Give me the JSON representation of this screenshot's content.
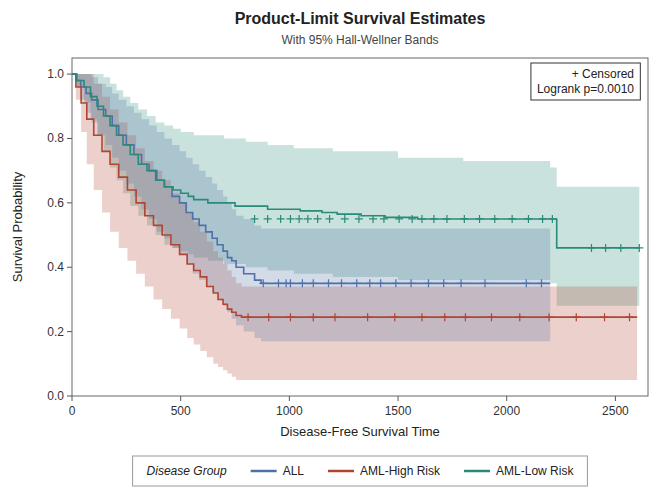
{
  "chart_data": {
    "type": "step",
    "title": "Product-Limit Survival Estimates",
    "subtitle": "With 95% Hall-Wellner Bands",
    "xlabel": "Disease-Free Survival Time",
    "ylabel": "Survival Probability",
    "annotation": "+ Censored\nLogrank p=0.0010",
    "legend_title": "Disease Group",
    "legend": "bottom",
    "grid": false,
    "xlim": [
      0,
      2650
    ],
    "ylim": [
      0.0,
      1.05
    ],
    "xticks": [
      0,
      500,
      1000,
      1500,
      2000,
      2500
    ],
    "yticks": [
      {
        "value": 0.0,
        "label": "0.0"
      },
      0.2,
      0.4,
      0.6,
      0.8,
      {
        "value": 1.0,
        "label": "1.0"
      }
    ],
    "series": [
      {
        "name": "ALL",
        "color": "#5070a8",
        "x": [
          0,
          20,
          40,
          65,
          90,
          120,
          155,
          185,
          215,
          250,
          285,
          320,
          355,
          390,
          425,
          460,
          495,
          525,
          555,
          585,
          615,
          645,
          668,
          695,
          715,
          735,
          755,
          790,
          840,
          870,
          2200
        ],
        "values": [
          1.0,
          0.98,
          0.96,
          0.94,
          0.92,
          0.89,
          0.87,
          0.84,
          0.81,
          0.78,
          0.75,
          0.72,
          0.7,
          0.67,
          0.65,
          0.62,
          0.6,
          0.57,
          0.55,
          0.53,
          0.51,
          0.49,
          0.47,
          0.45,
          0.43,
          0.42,
          0.4,
          0.38,
          0.36,
          0.35,
          0.35
        ],
        "upper": {
          "x": [
            0,
            20,
            40,
            65,
            90,
            120,
            155,
            185,
            215,
            250,
            285,
            320,
            355,
            390,
            425,
            460,
            495,
            525,
            555,
            585,
            615,
            645,
            668,
            695,
            715,
            735,
            755,
            790,
            840,
            870,
            2200
          ],
          "values": [
            1.0,
            1.0,
            1.0,
            1.0,
            0.99,
            0.97,
            0.96,
            0.94,
            0.92,
            0.9,
            0.88,
            0.86,
            0.84,
            0.82,
            0.8,
            0.78,
            0.76,
            0.74,
            0.72,
            0.7,
            0.68,
            0.66,
            0.64,
            0.62,
            0.6,
            0.58,
            0.56,
            0.55,
            0.53,
            0.52,
            0.52
          ]
        },
        "lower": {
          "x": [
            0,
            20,
            40,
            65,
            90,
            120,
            155,
            185,
            215,
            250,
            285,
            320,
            355,
            390,
            425,
            460,
            495,
            525,
            555,
            585,
            615,
            645,
            668,
            695,
            715,
            735,
            755,
            790,
            840,
            870,
            2200
          ],
          "values": [
            1.0,
            0.96,
            0.92,
            0.88,
            0.85,
            0.81,
            0.78,
            0.74,
            0.7,
            0.66,
            0.62,
            0.58,
            0.55,
            0.51,
            0.49,
            0.46,
            0.44,
            0.41,
            0.38,
            0.36,
            0.34,
            0.32,
            0.3,
            0.28,
            0.26,
            0.24,
            0.22,
            0.2,
            0.18,
            0.17,
            0.17
          ]
        },
        "censors": [
          {
            "x": [
              880,
              950,
              985,
              1005,
              1060,
              1110,
              1180,
              1240,
              1310,
              1370,
              1420,
              1490,
              1560,
              1640,
              1710,
              1790,
              1900,
              2090,
              2160
            ],
            "y": 0.35
          }
        ]
      },
      {
        "name": "AML-High Risk",
        "color": "#b04535",
        "x": [
          0,
          18,
          42,
          68,
          100,
          138,
          175,
          215,
          255,
          295,
          335,
          375,
          415,
          455,
          495,
          530,
          560,
          590,
          620,
          650,
          672,
          695,
          715,
          735,
          755,
          780,
          2600
        ],
        "values": [
          1.0,
          0.96,
          0.91,
          0.86,
          0.81,
          0.76,
          0.72,
          0.68,
          0.64,
          0.6,
          0.56,
          0.53,
          0.5,
          0.47,
          0.44,
          0.41,
          0.39,
          0.37,
          0.34,
          0.32,
          0.3,
          0.285,
          0.27,
          0.26,
          0.25,
          0.245,
          0.245
        ],
        "upper": {
          "x": [
            0,
            18,
            42,
            68,
            100,
            138,
            175,
            215,
            255,
            295,
            335,
            375,
            415,
            455,
            495,
            530,
            560,
            590,
            620,
            650,
            672,
            695,
            715,
            735,
            755,
            780,
            2600
          ],
          "values": [
            1.0,
            1.0,
            1.0,
            1.0,
            0.97,
            0.93,
            0.89,
            0.85,
            0.81,
            0.77,
            0.73,
            0.7,
            0.67,
            0.63,
            0.6,
            0.57,
            0.54,
            0.51,
            0.48,
            0.45,
            0.43,
            0.41,
            0.39,
            0.37,
            0.35,
            0.34,
            0.34
          ]
        },
        "lower": {
          "x": [
            0,
            18,
            42,
            68,
            100,
            138,
            175,
            215,
            255,
            295,
            335,
            375,
            415,
            455,
            495,
            530,
            560,
            590,
            620,
            650,
            672,
            695,
            715,
            735,
            755,
            780,
            2600
          ],
          "values": [
            1.0,
            0.92,
            0.82,
            0.72,
            0.64,
            0.57,
            0.51,
            0.46,
            0.42,
            0.38,
            0.34,
            0.3,
            0.27,
            0.24,
            0.21,
            0.18,
            0.16,
            0.14,
            0.12,
            0.1,
            0.09,
            0.08,
            0.07,
            0.06,
            0.05,
            0.05,
            0.05
          ]
        },
        "censors": [
          {
            "x": [
              810,
              905,
              1005,
              1110,
              1210,
              1360,
              1485,
              1610,
              1715,
              1810,
              1930,
              2060,
              2195,
              2320,
              2450,
              2565
            ],
            "y": 0.245
          }
        ]
      },
      {
        "name": "AML-Low Risk",
        "color": "#2a8a78",
        "x": [
          0,
          22,
          55,
          85,
          115,
          145,
          175,
          205,
          235,
          268,
          305,
          345,
          385,
          425,
          465,
          500,
          535,
          560,
          590,
          625,
          660,
          690,
          720,
          750,
          800,
          850,
          900,
          960,
          1020,
          1050,
          1100,
          1150,
          1180,
          1220,
          1270,
          1330,
          1390,
          1440,
          1490,
          1540,
          1590,
          1640,
          1690,
          1740,
          1790,
          1840,
          1890,
          1950,
          2000,
          2060,
          2120,
          2170,
          2210,
          2230,
          2380,
          2500,
          2610
        ],
        "values": [
          1.0,
          0.98,
          0.96,
          0.93,
          0.9,
          0.87,
          0.84,
          0.81,
          0.78,
          0.75,
          0.72,
          0.7,
          0.67,
          0.65,
          0.64,
          0.63,
          0.62,
          0.61,
          0.61,
          0.6,
          0.6,
          0.6,
          0.6,
          0.59,
          0.59,
          0.59,
          0.58,
          0.58,
          0.58,
          0.575,
          0.575,
          0.57,
          0.57,
          0.565,
          0.565,
          0.56,
          0.56,
          0.555,
          0.555,
          0.555,
          0.55,
          0.55,
          0.55,
          0.55,
          0.55,
          0.55,
          0.55,
          0.55,
          0.55,
          0.55,
          0.55,
          0.55,
          0.55,
          0.46,
          0.46,
          0.46,
          0.46
        ],
        "upper": {
          "x": [
            0,
            22,
            55,
            85,
            115,
            145,
            175,
            205,
            235,
            268,
            305,
            345,
            385,
            425,
            465,
            500,
            535,
            560,
            590,
            625,
            700,
            800,
            900,
            1020,
            1200,
            1500,
            1800,
            2200,
            2230,
            2610
          ],
          "values": [
            1.0,
            1.0,
            1.0,
            1.0,
            1.0,
            0.99,
            0.97,
            0.95,
            0.93,
            0.91,
            0.89,
            0.87,
            0.85,
            0.84,
            0.83,
            0.82,
            0.82,
            0.81,
            0.81,
            0.81,
            0.8,
            0.79,
            0.78,
            0.77,
            0.76,
            0.74,
            0.73,
            0.71,
            0.65,
            0.65
          ]
        },
        "lower": {
          "x": [
            0,
            22,
            55,
            85,
            115,
            145,
            175,
            205,
            235,
            268,
            305,
            345,
            385,
            425,
            465,
            500,
            535,
            560,
            590,
            625,
            700,
            800,
            900,
            1020,
            1200,
            1500,
            1800,
            2200,
            2230,
            2610
          ],
          "values": [
            1.0,
            0.96,
            0.91,
            0.86,
            0.81,
            0.76,
            0.71,
            0.67,
            0.63,
            0.59,
            0.56,
            0.53,
            0.5,
            0.47,
            0.46,
            0.45,
            0.44,
            0.43,
            0.43,
            0.42,
            0.41,
            0.4,
            0.39,
            0.38,
            0.37,
            0.36,
            0.36,
            0.35,
            0.28,
            0.28
          ]
        },
        "censors": [
          {
            "x": [
              840,
              900,
              960,
              1005,
              1045,
              1085,
              1130,
              1185,
              1255,
              1320,
              1385,
              1435,
              1505,
              1565,
              1610,
              1665,
              1725,
              1805,
              1875,
              1945,
              2025,
              2100,
              2165,
              2210
            ],
            "y": 0.55
          },
          {
            "x": [
              2390,
              2455,
              2525,
              2610
            ],
            "y": 0.46
          }
        ]
      }
    ]
  }
}
